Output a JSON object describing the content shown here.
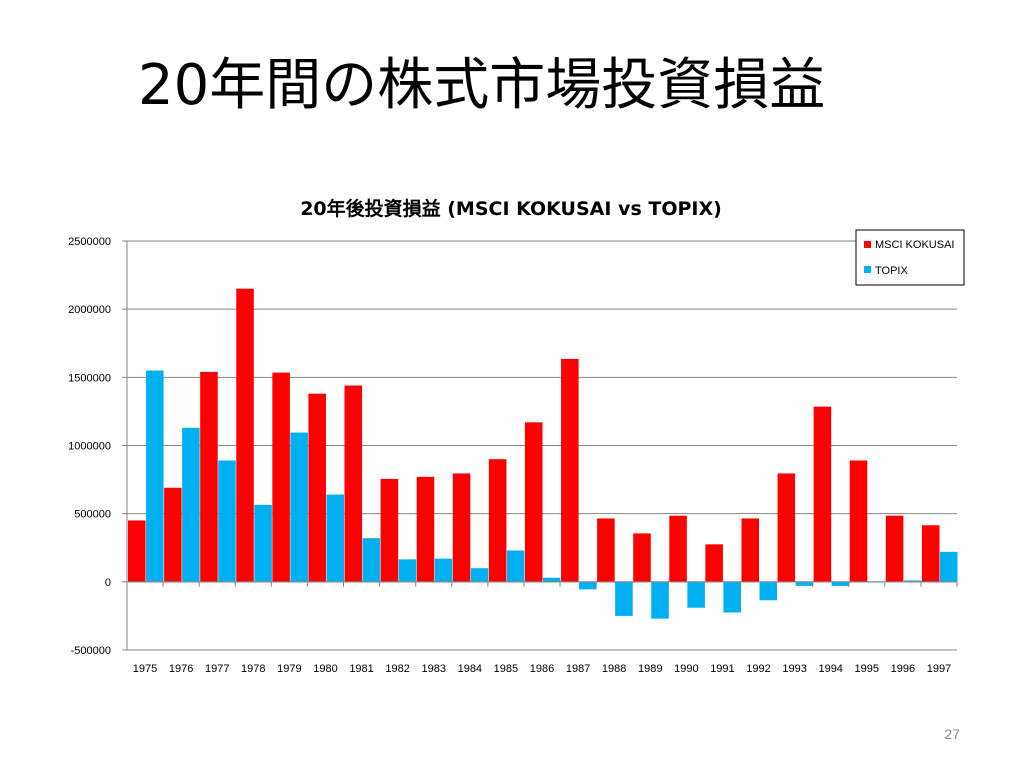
{
  "slide": {
    "title": "20年間の株式市場投資損益",
    "page_number": "27"
  },
  "colors": {
    "msci": "#ff0000",
    "topix": "#00b0f0",
    "grid": "#868686"
  },
  "chart_data": {
    "type": "bar",
    "title": "20年後投資損益 (MSCI KOKUSAI vs TOPIX)",
    "xlabel": "",
    "ylabel": "",
    "ylim": [
      -500000,
      2500000
    ],
    "yticks": [
      -500000,
      0,
      500000,
      1000000,
      1500000,
      2000000,
      2500000
    ],
    "ytick_labels": [
      "-500000",
      "0",
      "500000",
      "1000000",
      "1500000",
      "2000000",
      "2500000"
    ],
    "grid": true,
    "legend_position": "top-right",
    "categories": [
      "1975",
      "1976",
      "1977",
      "1978",
      "1979",
      "1980",
      "1981",
      "1982",
      "1983",
      "1984",
      "1985",
      "1986",
      "1987",
      "1988",
      "1989",
      "1990",
      "1991",
      "1992",
      "1993",
      "1994",
      "1995",
      "1996",
      "1997"
    ],
    "series": [
      {
        "name": "MSCI KOKUSAI",
        "color": "#ff0000",
        "values": [
          450000,
          690000,
          1540000,
          2150000,
          1535000,
          1380000,
          1440000,
          755000,
          770000,
          795000,
          900000,
          1170000,
          1635000,
          465000,
          355000,
          485000,
          275000,
          465000,
          795000,
          1285000,
          890000,
          485000,
          415000
        ]
      },
      {
        "name": "TOPIX",
        "color": "#00b0f0",
        "values": [
          1550000,
          1130000,
          890000,
          565000,
          1095000,
          640000,
          320000,
          165000,
          170000,
          100000,
          230000,
          30000,
          -55000,
          -250000,
          -270000,
          -190000,
          -225000,
          -135000,
          -30000,
          -30000,
          -5000,
          10000,
          220000
        ]
      }
    ]
  }
}
